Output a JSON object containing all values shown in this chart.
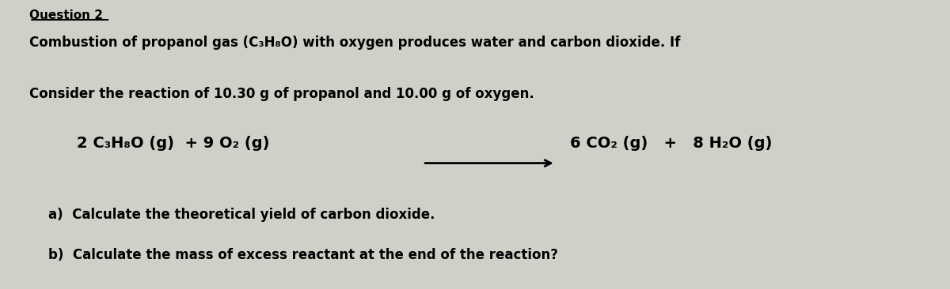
{
  "bg_color": "#d0cfc8",
  "text_color": "#000000",
  "figsize": [
    12.0,
    3.66
  ],
  "dpi": 100,
  "line1": "Combustion of propanol gas (C₃H₈O) with oxygen produces water and carbon dioxide. If",
  "line2": "Consider the reaction of 10.30 g of propanol and 10.00 g of oxygen.",
  "equation_left": "2 C₃H₈O (g)  + 9 O₂ (g)",
  "equation_right": "6 CO₂ (g)   +   8 H₂O (g)",
  "question_a": "a)  Calculate the theoretical yield of carbon dioxide.",
  "question_b": "b)  Calculate the mass of excess reactant at the end of the reaction?",
  "font_size_header": 11,
  "font_size_body": 12,
  "font_size_equation": 14,
  "font_size_questions": 12
}
